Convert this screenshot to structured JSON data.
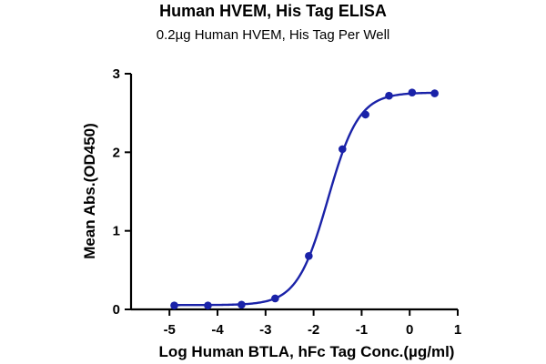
{
  "chart_data": {
    "type": "scatter",
    "title": "Human HVEM, His Tag ELISA",
    "subtitle": "0.2µg Human HVEM, His Tag Per Well",
    "xlabel": "Log Human BTLA, hFc Tag Conc.(µg/ml)",
    "ylabel": "Mean Abs.(OD450)",
    "xlim": [
      -5.8,
      1
    ],
    "ylim": [
      0,
      3
    ],
    "xticks": [
      "-5",
      "-4",
      "-3",
      "-2",
      "-1",
      "0",
      "1"
    ],
    "yticks": [
      "0",
      "1",
      "2",
      "3"
    ],
    "grid": false,
    "x": [
      -4.9,
      -4.2,
      -3.5,
      -2.8,
      -2.1,
      -1.4,
      -0.92,
      -0.43,
      0.05,
      0.52
    ],
    "y": [
      0.05,
      0.05,
      0.06,
      0.14,
      0.68,
      2.04,
      2.48,
      2.72,
      2.76,
      2.75
    ],
    "fit": {
      "bottom": 0.055,
      "top": 2.76,
      "logEC50": -1.7,
      "hillslope": 1.35
    },
    "colors": {
      "series": "#1a22a8",
      "axis": "#000000"
    }
  }
}
